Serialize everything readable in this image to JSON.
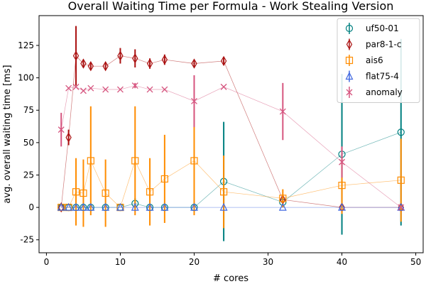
{
  "chart_data": {
    "type": "scatter",
    "title": "Overall Waiting Time per Formula - Work Stealing Version",
    "xlabel": "# cores",
    "ylabel": "avg. overall waiting time [ms]",
    "xlim": [
      -1,
      51
    ],
    "ylim": [
      -35,
      148
    ],
    "xticks": [
      0,
      10,
      20,
      30,
      40,
      50
    ],
    "yticks": [
      -25,
      0,
      25,
      50,
      75,
      100,
      125
    ],
    "grid": false,
    "legend_position": "top-right",
    "series": [
      {
        "name": "uf50-01",
        "color": "#008080",
        "marker": "circle",
        "points": [
          {
            "x": 2,
            "y": 0,
            "err": 0
          },
          {
            "x": 3,
            "y": 0,
            "err": 0
          },
          {
            "x": 4,
            "y": 0,
            "err": 0
          },
          {
            "x": 5,
            "y": 0,
            "err": 0
          },
          {
            "x": 6,
            "y": 0,
            "err": 0
          },
          {
            "x": 8,
            "y": 0,
            "err": 0
          },
          {
            "x": 10,
            "y": 0,
            "err": 0
          },
          {
            "x": 12,
            "y": 3,
            "err": 4
          },
          {
            "x": 14,
            "y": 0,
            "err": 0
          },
          {
            "x": 16,
            "y": 0,
            "err": 0
          },
          {
            "x": 20,
            "y": 0,
            "err": 0
          },
          {
            "x": 24,
            "y": 20,
            "err": 46
          },
          {
            "x": 32,
            "y": 4,
            "err": 4
          },
          {
            "x": 40,
            "y": 41,
            "err": 62
          },
          {
            "x": 48,
            "y": 58,
            "err": 72
          }
        ]
      },
      {
        "name": "par8-1-c",
        "color": "#aa1111",
        "marker": "thin_diamond",
        "points": [
          {
            "x": 2,
            "y": 0,
            "err": 0
          },
          {
            "x": 3,
            "y": 54,
            "err": 6
          },
          {
            "x": 4,
            "y": 117,
            "err": 23
          },
          {
            "x": 5,
            "y": 111,
            "err": 3
          },
          {
            "x": 6,
            "y": 109,
            "err": 3
          },
          {
            "x": 8,
            "y": 109,
            "err": 3
          },
          {
            "x": 10,
            "y": 117,
            "err": 6
          },
          {
            "x": 12,
            "y": 115,
            "err": 7
          },
          {
            "x": 14,
            "y": 111,
            "err": 4
          },
          {
            "x": 16,
            "y": 114,
            "err": 4
          },
          {
            "x": 20,
            "y": 111,
            "err": 3
          },
          {
            "x": 24,
            "y": 113,
            "err": 3
          },
          {
            "x": 32,
            "y": 6,
            "err": 4
          },
          {
            "x": 40,
            "y": 0,
            "err": 0
          },
          {
            "x": 48,
            "y": 0,
            "err": 0
          }
        ]
      },
      {
        "name": "ais6",
        "color": "#ff8c00",
        "marker": "square",
        "points": [
          {
            "x": 2,
            "y": 0,
            "err": 0
          },
          {
            "x": 3,
            "y": 0,
            "err": 0
          },
          {
            "x": 4,
            "y": 12,
            "err": 26
          },
          {
            "x": 5,
            "y": 11,
            "err": 26
          },
          {
            "x": 6,
            "y": 36,
            "err": 42
          },
          {
            "x": 8,
            "y": 11,
            "err": 26
          },
          {
            "x": 10,
            "y": 0,
            "err": 0
          },
          {
            "x": 12,
            "y": 36,
            "err": 42
          },
          {
            "x": 14,
            "y": 12,
            "err": 26
          },
          {
            "x": 16,
            "y": 22,
            "err": 34
          },
          {
            "x": 20,
            "y": 36,
            "err": 42
          },
          {
            "x": 24,
            "y": 12,
            "err": 28
          },
          {
            "x": 32,
            "y": 7,
            "err": 7
          },
          {
            "x": 40,
            "y": 17,
            "err": 22
          },
          {
            "x": 48,
            "y": 21,
            "err": 32
          }
        ]
      },
      {
        "name": "flat75-4",
        "color": "#4169e1",
        "marker": "triangle",
        "points": [
          {
            "x": 2,
            "y": 0,
            "err": 0
          },
          {
            "x": 3,
            "y": 0,
            "err": 0
          },
          {
            "x": 4,
            "y": 0,
            "err": 0
          },
          {
            "x": 5,
            "y": 0,
            "err": 0
          },
          {
            "x": 6,
            "y": 0,
            "err": 0
          },
          {
            "x": 8,
            "y": 0,
            "err": 0
          },
          {
            "x": 10,
            "y": 0,
            "err": 0
          },
          {
            "x": 12,
            "y": 0,
            "err": 0
          },
          {
            "x": 14,
            "y": 0,
            "err": 0
          },
          {
            "x": 16,
            "y": 0,
            "err": 0
          },
          {
            "x": 20,
            "y": 0,
            "err": 0
          },
          {
            "x": 24,
            "y": 0,
            "err": 0
          },
          {
            "x": 32,
            "y": 0,
            "err": 0
          },
          {
            "x": 40,
            "y": 0,
            "err": 0
          },
          {
            "x": 48,
            "y": 0,
            "err": 0
          }
        ]
      },
      {
        "name": "anomaly",
        "color": "#d6557f",
        "marker": "x",
        "points": [
          {
            "x": 2,
            "y": 60,
            "err": 13
          },
          {
            "x": 3,
            "y": 92,
            "err": 0
          },
          {
            "x": 4,
            "y": 93,
            "err": 0
          },
          {
            "x": 5,
            "y": 90,
            "err": 0
          },
          {
            "x": 6,
            "y": 92,
            "err": 0
          },
          {
            "x": 8,
            "y": 91,
            "err": 0
          },
          {
            "x": 10,
            "y": 91,
            "err": 0
          },
          {
            "x": 12,
            "y": 94,
            "err": 2
          },
          {
            "x": 14,
            "y": 91,
            "err": 0
          },
          {
            "x": 16,
            "y": 91,
            "err": 0
          },
          {
            "x": 20,
            "y": 82,
            "err": 20
          },
          {
            "x": 24,
            "y": 93,
            "err": 0
          },
          {
            "x": 32,
            "y": 74,
            "err": 22
          },
          {
            "x": 40,
            "y": 35,
            "err": 12
          },
          {
            "x": 48,
            "y": 0,
            "err": 0
          }
        ]
      }
    ]
  }
}
